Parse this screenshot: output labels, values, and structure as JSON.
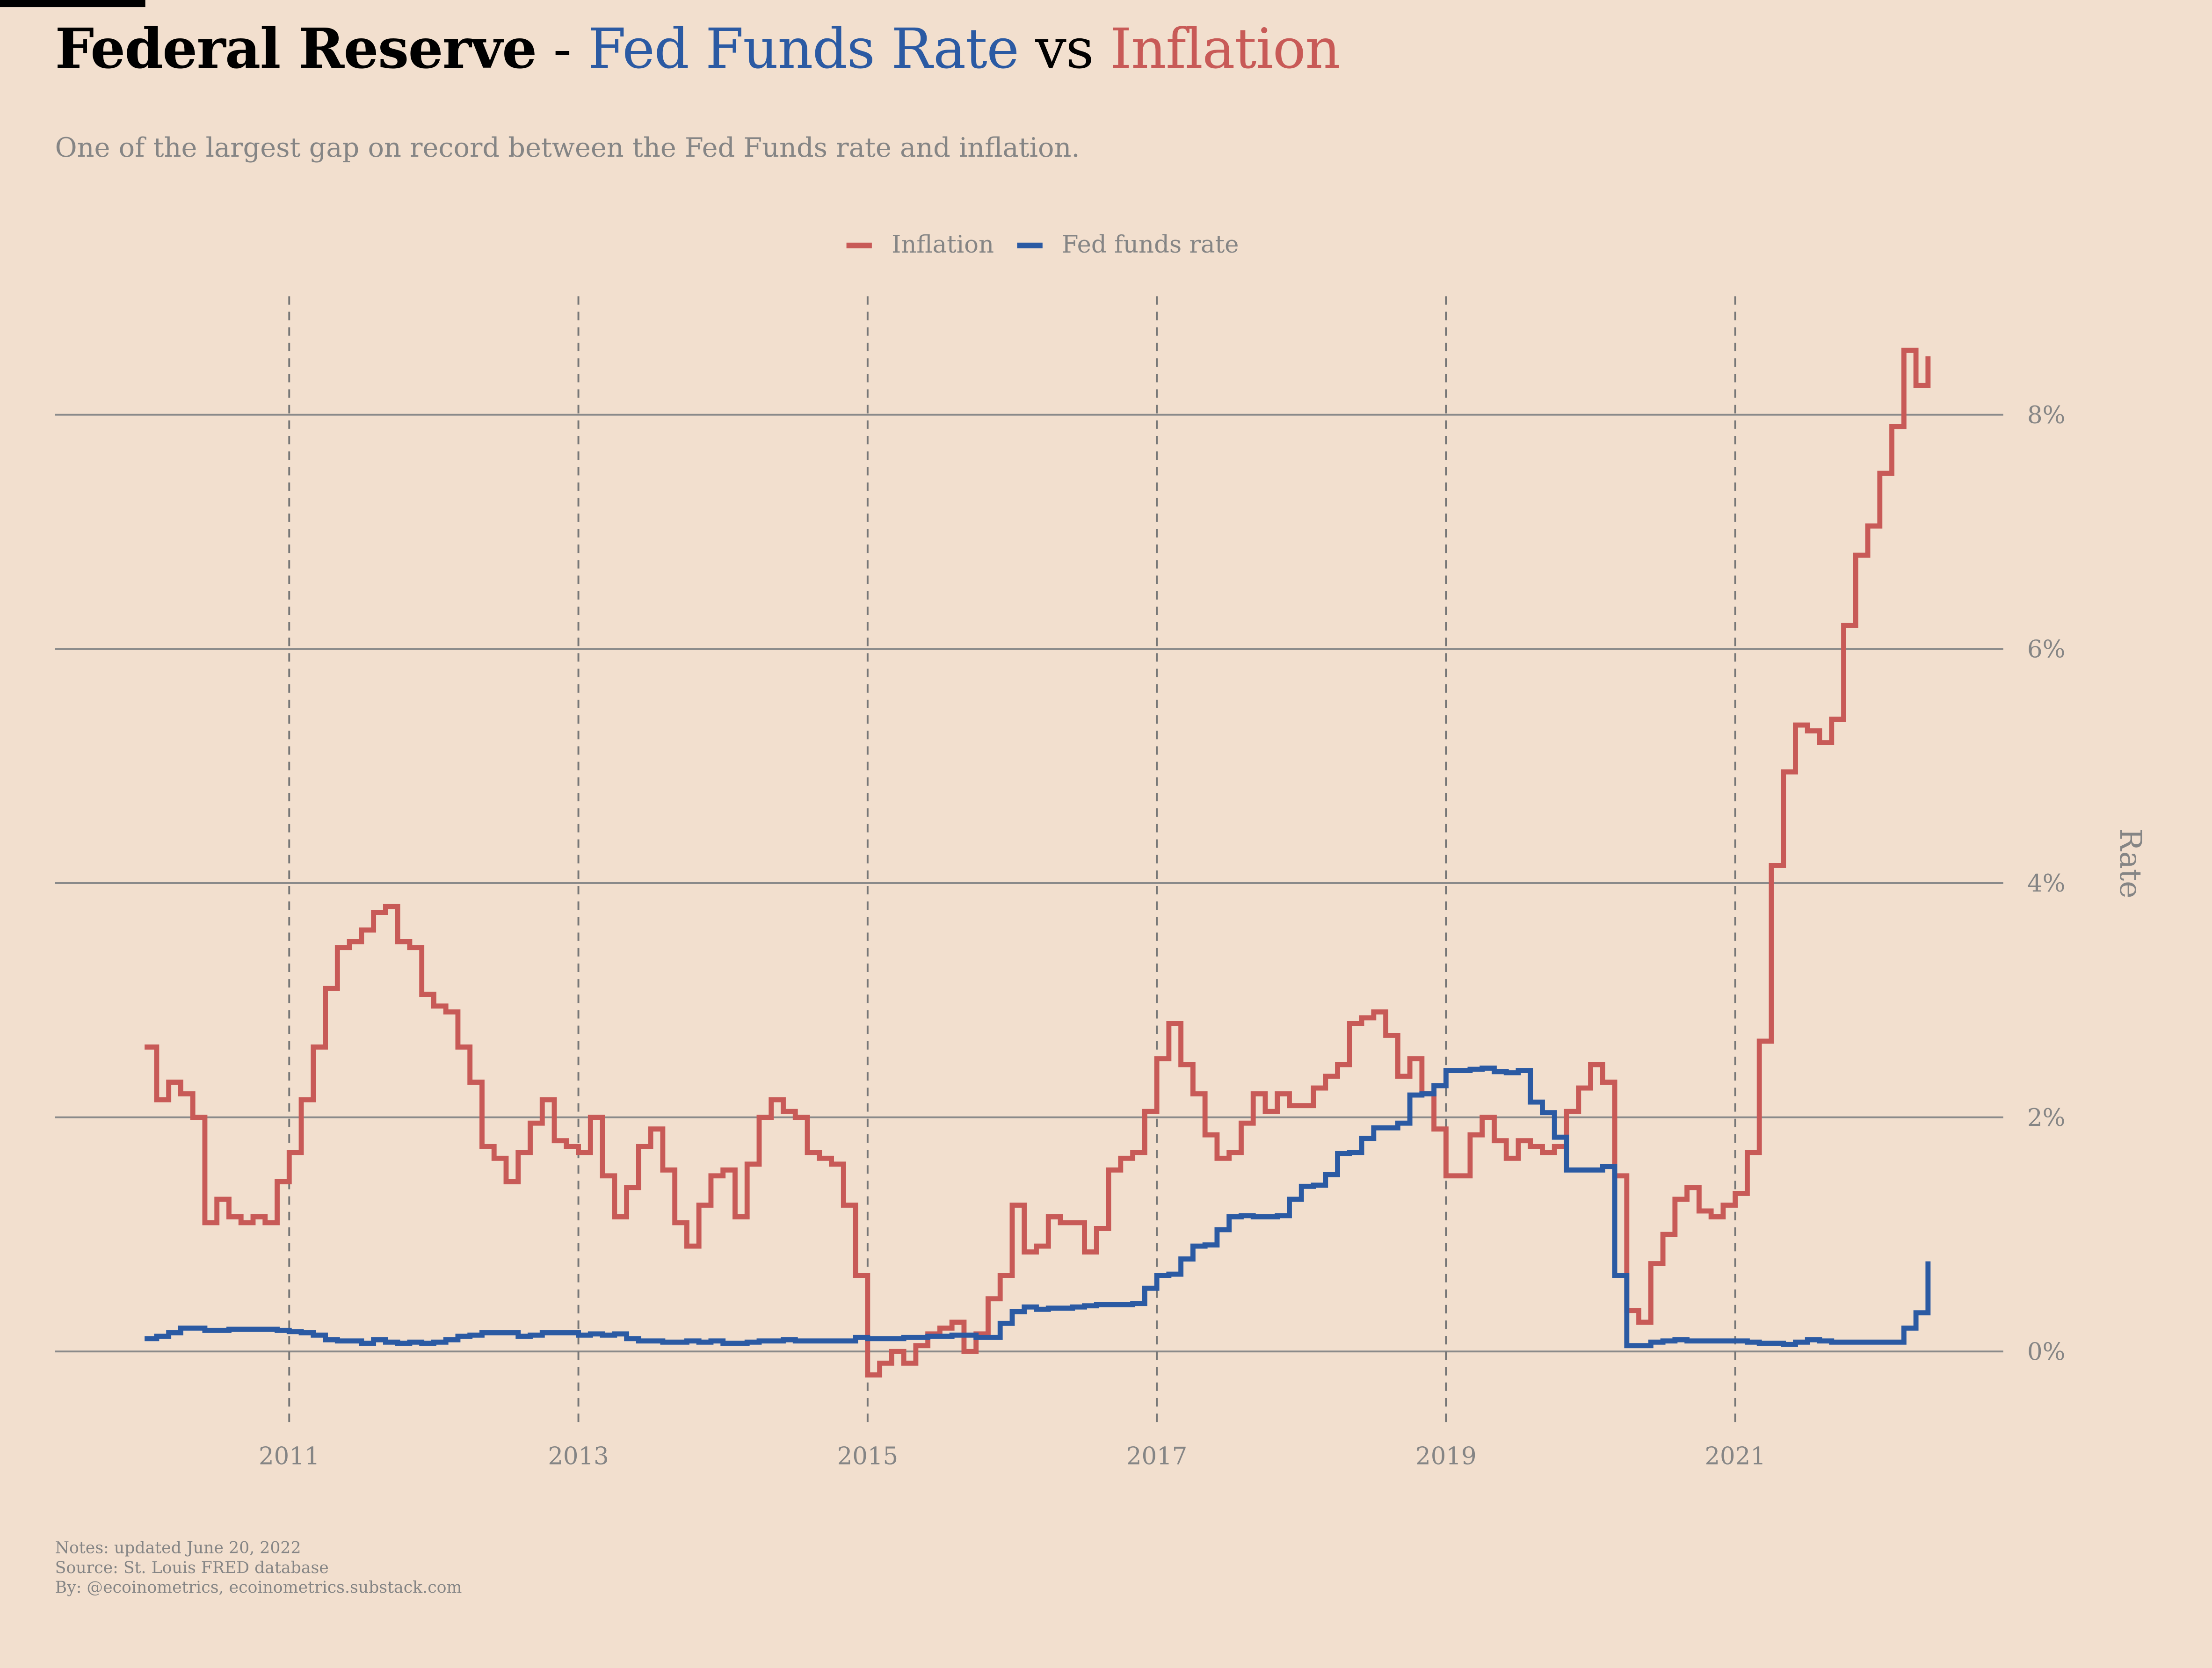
{
  "title": {
    "part1": "Federal Reserve",
    "sep": " - ",
    "part2": "Fed Funds Rate",
    "vs": " vs ",
    "part3": "Inflation"
  },
  "subtitle": "One of the largest gap on record between the Fed Funds rate and inflation.",
  "notes": [
    "Notes: updated June 20, 2022",
    "Source: St. Louis FRED database",
    "By: @ecoinometrics, ecoinometrics.substack.com"
  ],
  "chart_data": {
    "type": "line",
    "step": true,
    "ylabel": "Rate",
    "ylim": [
      -0.6,
      8.9
    ],
    "y_ticks": [
      0,
      2,
      4,
      6,
      8
    ],
    "y_tick_labels": [
      "0%",
      "2%",
      "4%",
      "6%",
      "8%"
    ],
    "x_ticks": [
      "2011",
      "2013",
      "2015",
      "2017",
      "2019",
      "2021"
    ],
    "y_axis_position": "right",
    "grid": "horizontal solid, vertical dashed",
    "legend": "top",
    "start": "2010-01",
    "frequency": "monthly",
    "series": [
      {
        "name": "Inflation",
        "color": "#c85a57",
        "values": [
          2.6,
          2.15,
          2.3,
          2.2,
          2.0,
          1.1,
          1.3,
          1.15,
          1.1,
          1.15,
          1.1,
          1.45,
          1.7,
          2.15,
          2.6,
          3.1,
          3.45,
          3.5,
          3.6,
          3.75,
          3.8,
          3.5,
          3.45,
          3.05,
          2.95,
          2.9,
          2.6,
          2.3,
          1.75,
          1.65,
          1.45,
          1.7,
          1.95,
          2.15,
          1.8,
          1.75,
          1.7,
          2.0,
          1.5,
          1.15,
          1.4,
          1.75,
          1.9,
          1.55,
          1.1,
          0.9,
          1.25,
          1.5,
          1.55,
          1.15,
          1.6,
          2.0,
          2.15,
          2.05,
          2.0,
          1.7,
          1.65,
          1.6,
          1.25,
          0.65,
          -0.2,
          -0.1,
          0.0,
          -0.1,
          0.05,
          0.15,
          0.2,
          0.25,
          0.0,
          0.15,
          0.45,
          0.65,
          1.25,
          0.85,
          0.9,
          1.15,
          1.1,
          1.1,
          0.85,
          1.05,
          1.55,
          1.65,
          1.7,
          2.05,
          2.5,
          2.8,
          2.45,
          2.2,
          1.85,
          1.65,
          1.7,
          1.95,
          2.2,
          2.05,
          2.2,
          2.1,
          2.1,
          2.25,
          2.35,
          2.45,
          2.8,
          2.85,
          2.9,
          2.7,
          2.35,
          2.5,
          2.2,
          1.9,
          1.5,
          1.5,
          1.85,
          2.0,
          1.8,
          1.65,
          1.8,
          1.75,
          1.7,
          1.75,
          2.05,
          2.25,
          2.45,
          2.3,
          1.5,
          0.35,
          0.25,
          0.75,
          1.0,
          1.3,
          1.4,
          1.2,
          1.15,
          1.25,
          1.35,
          1.7,
          2.65,
          4.15,
          4.95,
          5.35,
          5.3,
          5.2,
          5.4,
          6.2,
          6.8,
          7.05,
          7.5,
          7.9,
          8.55,
          8.25,
          8.5
        ]
      },
      {
        "name": "Fed funds rate",
        "color": "#2b5aa3",
        "values": [
          0.11,
          0.13,
          0.16,
          0.2,
          0.2,
          0.18,
          0.18,
          0.19,
          0.19,
          0.19,
          0.19,
          0.18,
          0.17,
          0.16,
          0.14,
          0.1,
          0.09,
          0.09,
          0.07,
          0.1,
          0.08,
          0.07,
          0.08,
          0.07,
          0.08,
          0.1,
          0.13,
          0.14,
          0.16,
          0.16,
          0.16,
          0.13,
          0.14,
          0.16,
          0.16,
          0.16,
          0.14,
          0.15,
          0.14,
          0.15,
          0.11,
          0.09,
          0.09,
          0.08,
          0.08,
          0.09,
          0.08,
          0.09,
          0.07,
          0.07,
          0.08,
          0.09,
          0.09,
          0.1,
          0.09,
          0.09,
          0.09,
          0.09,
          0.09,
          0.12,
          0.11,
          0.11,
          0.11,
          0.12,
          0.12,
          0.13,
          0.13,
          0.14,
          0.14,
          0.12,
          0.12,
          0.24,
          0.34,
          0.38,
          0.36,
          0.37,
          0.37,
          0.38,
          0.39,
          0.4,
          0.4,
          0.4,
          0.41,
          0.54,
          0.65,
          0.66,
          0.79,
          0.9,
          0.91,
          1.04,
          1.15,
          1.16,
          1.15,
          1.15,
          1.16,
          1.3,
          1.41,
          1.42,
          1.51,
          1.69,
          1.7,
          1.82,
          1.91,
          1.91,
          1.95,
          2.19,
          2.2,
          2.27,
          2.4,
          2.4,
          2.41,
          2.42,
          2.39,
          2.38,
          2.4,
          2.13,
          2.04,
          1.83,
          1.55,
          1.55,
          1.55,
          1.58,
          0.65,
          0.05,
          0.05,
          0.08,
          0.09,
          0.1,
          0.09,
          0.09,
          0.09,
          0.09,
          0.09,
          0.08,
          0.07,
          0.07,
          0.06,
          0.08,
          0.1,
          0.09,
          0.08,
          0.08,
          0.08,
          0.08,
          0.08,
          0.08,
          0.2,
          0.33,
          0.77
        ]
      }
    ]
  }
}
